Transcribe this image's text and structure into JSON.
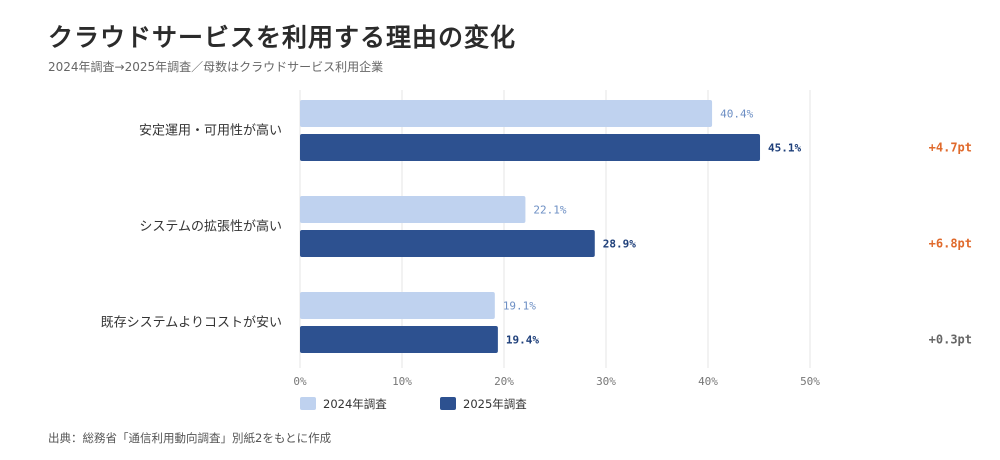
{
  "title": "クラウドサービスを利用する理由の変化",
  "subtitle": "2024年調査→2025年調査／母数はクラウドサービス利用企業",
  "source": "出典：総務省「通信利用動向調査」別紙2をもとに作成",
  "colors": {
    "series_2024": "#bfd2ef",
    "series_2025": "#2d5190",
    "diff_up_large": "#e06a2c",
    "diff_small": "#666666",
    "grid": "#e4e4e4"
  },
  "chart_data": {
    "type": "bar",
    "orientation": "horizontal",
    "categories": [
      "安定運用・可用性が高い",
      "システムの拡張性が高い",
      "既存システムよりコストが安い"
    ],
    "series": [
      {
        "name": "2024年調査",
        "values": [
          40.4,
          22.1,
          19.1
        ],
        "labels": [
          "40.4%",
          "22.1%",
          "19.1%"
        ]
      },
      {
        "name": "2025年調査",
        "values": [
          45.1,
          28.9,
          19.4
        ],
        "labels": [
          "45.1%",
          "28.9%",
          "19.4%"
        ]
      }
    ],
    "differences": [
      "+4.7pt",
      "+6.8pt",
      "+0.3pt"
    ],
    "x_ticks": [
      "0%",
      "10%",
      "20%",
      "30%",
      "40%",
      "50%"
    ],
    "xlim": [
      0,
      50
    ],
    "grid": true,
    "legend_position": "bottom-left"
  }
}
